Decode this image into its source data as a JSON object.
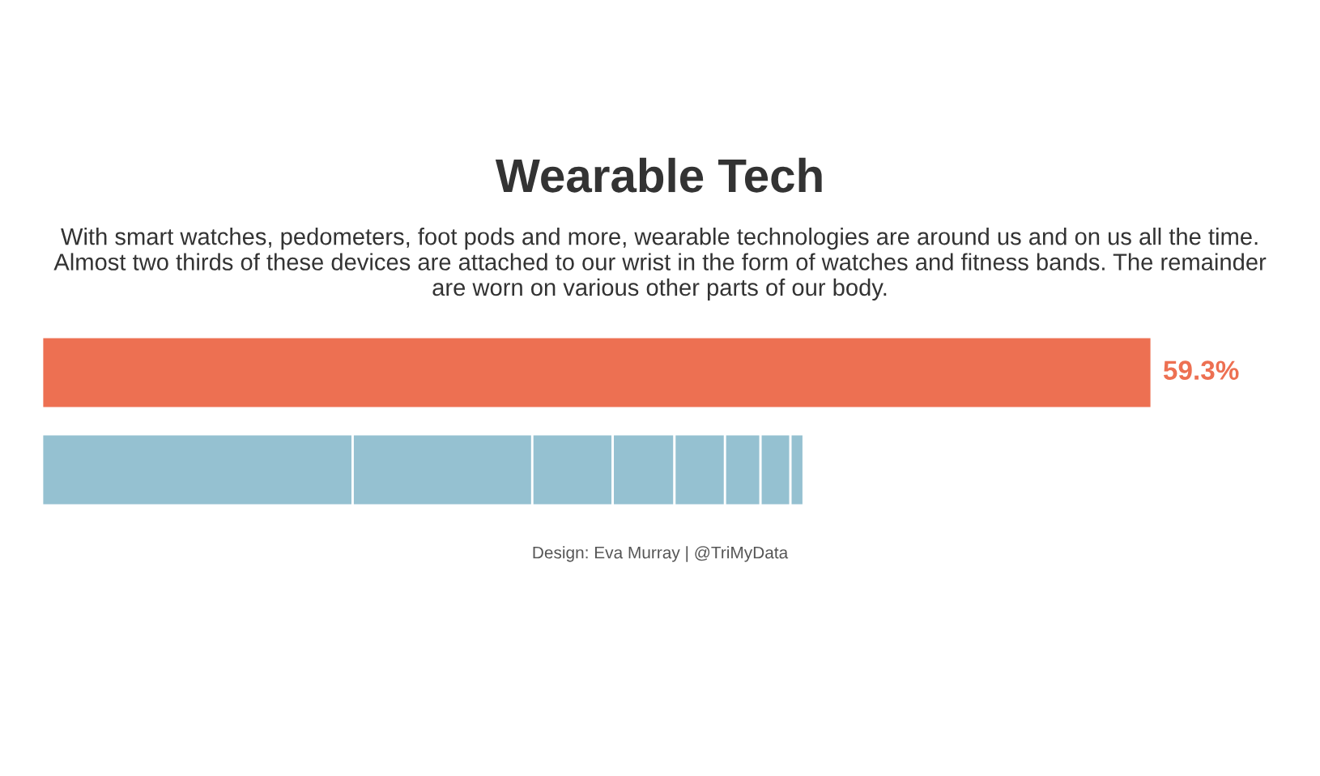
{
  "chart_data": {
    "type": "bar",
    "orientation": "horizontal",
    "stacked": true,
    "title": "Wearable Tech",
    "subtitle": "With smart watches, pedometers, foot pods and more, wearable technologies are around us and on us all the time.\nAlmost two thirds of these devices are attached to our wrist in the form of watches and fitness bands. The remainder\nare worn on various other parts of our body.",
    "categories": [
      null,
      null
    ],
    "series": [
      {
        "color": "#ed7052",
        "values": [
          59.3,
          null
        ],
        "value_labels": [
          "59.3%",
          null
        ]
      },
      {
        "color": "#95c1d1",
        "values": [
          null,
          16.6
        ]
      },
      {
        "color": "#95c1d1",
        "values": [
          null,
          9.6
        ]
      },
      {
        "color": "#95c1d1",
        "values": [
          null,
          4.3
        ]
      },
      {
        "color": "#95c1d1",
        "values": [
          null,
          3.3
        ]
      },
      {
        "color": "#95c1d1",
        "values": [
          null,
          2.7
        ]
      },
      {
        "color": "#95c1d1",
        "values": [
          null,
          1.9
        ]
      },
      {
        "color": "#95c1d1",
        "values": [
          null,
          1.6
        ]
      },
      {
        "color": "#95c1d1",
        "values": [
          null,
          0.7
        ]
      }
    ],
    "tick_labels": false,
    "annotations": [
      "Design: Eva Murray | @TriMyData"
    ]
  }
}
